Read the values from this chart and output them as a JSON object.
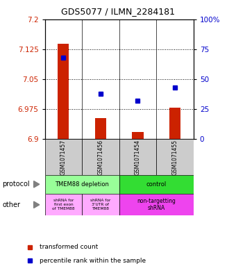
{
  "title": "GDS5077 / ILMN_2284181",
  "samples": [
    "GSM1071457",
    "GSM1071456",
    "GSM1071454",
    "GSM1071455"
  ],
  "bar_values": [
    7.138,
    6.952,
    6.918,
    6.978
  ],
  "dot_percentile": [
    68,
    38,
    32,
    43
  ],
  "ylim": [
    6.9,
    7.2
  ],
  "yticks_left": [
    6.9,
    6.975,
    7.05,
    7.125,
    7.2
  ],
  "yticks_right_vals": [
    0,
    25,
    50,
    75,
    100
  ],
  "yticks_right_labels": [
    "0",
    "25",
    "50",
    "75",
    "100%"
  ],
  "bar_color": "#cc2200",
  "dot_color": "#0000cc",
  "bar_bottom": 6.9,
  "protocol_labels": [
    "TMEM88 depletion",
    "control"
  ],
  "protocol_colors": [
    "#99ff99",
    "#33dd33"
  ],
  "other_labels_0": "shRNA for\nfirst exon\nof TMEM88",
  "other_labels_1": "shRNA for\n3'UTR of\nTMEM88",
  "other_labels_2": "non-targetting\nshRNA",
  "other_color_light": "#ffaaff",
  "other_color_bright": "#ee44ee",
  "legend_bar_label": "transformed count",
  "legend_dot_label": "percentile rank within the sample",
  "left_tick_color": "#cc2200",
  "right_tick_color": "#0000cc",
  "label_color_protocol": "black",
  "label_color_other": "black",
  "gray_cell": "#cccccc",
  "grid_color": "black",
  "grid_ls": ":"
}
